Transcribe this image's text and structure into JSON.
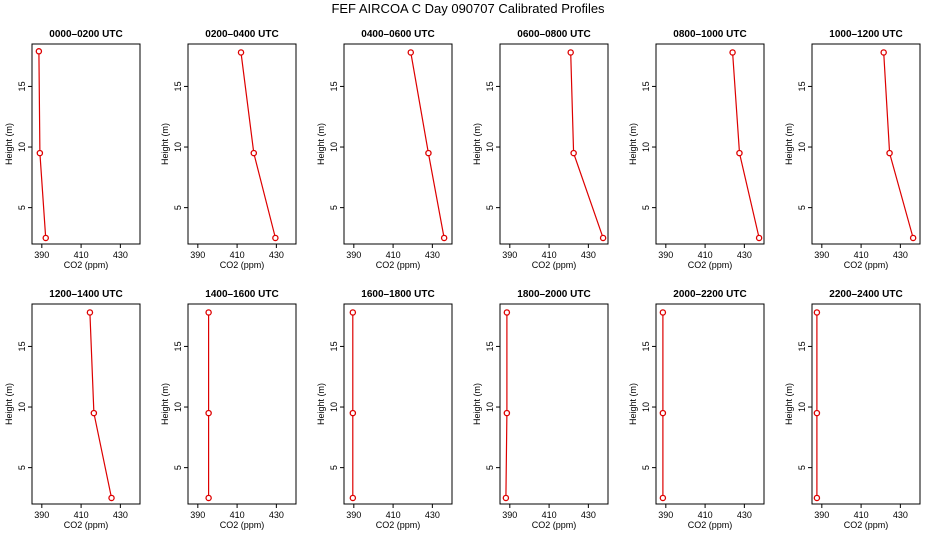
{
  "title": "FEF AIRCOA C  Day 090707  Calibrated Profiles",
  "colors": {
    "series": "#dd0000",
    "axis": "#000000",
    "background": "#ffffff"
  },
  "chart_data": [
    {
      "type": "line",
      "title": "0000–0200 UTC",
      "xlabel": "CO2 (ppm)",
      "ylabel": "Height (m)",
      "xlim": [
        385,
        440
      ],
      "ylim": [
        2,
        18.5
      ],
      "xticks": [
        390,
        410,
        430
      ],
      "yticks": [
        5,
        10,
        15
      ],
      "points": [
        {
          "x": 388.5,
          "y": 17.9
        },
        {
          "x": 389.0,
          "y": 9.5
        },
        {
          "x": 392.0,
          "y": 2.5
        }
      ]
    },
    {
      "type": "line",
      "title": "0200–0400 UTC",
      "xlabel": "CO2 (ppm)",
      "ylabel": "Height (m)",
      "xlim": [
        385,
        440
      ],
      "ylim": [
        2,
        18.5
      ],
      "xticks": [
        390,
        410,
        430
      ],
      "yticks": [
        5,
        10,
        15
      ],
      "points": [
        {
          "x": 412.0,
          "y": 17.8
        },
        {
          "x": 418.5,
          "y": 9.5
        },
        {
          "x": 429.5,
          "y": 2.5
        }
      ]
    },
    {
      "type": "line",
      "title": "0400–0600 UTC",
      "xlabel": "CO2 (ppm)",
      "ylabel": "Height (m)",
      "xlim": [
        385,
        440
      ],
      "ylim": [
        2,
        18.5
      ],
      "xticks": [
        390,
        410,
        430
      ],
      "yticks": [
        5,
        10,
        15
      ],
      "points": [
        {
          "x": 419.0,
          "y": 17.8
        },
        {
          "x": 428.0,
          "y": 9.5
        },
        {
          "x": 436.0,
          "y": 2.5
        }
      ]
    },
    {
      "type": "line",
      "title": "0600–0800 UTC",
      "xlabel": "CO2 (ppm)",
      "ylabel": "Height (m)",
      "xlim": [
        385,
        440
      ],
      "ylim": [
        2,
        18.5
      ],
      "xticks": [
        390,
        410,
        430
      ],
      "yticks": [
        5,
        10,
        15
      ],
      "points": [
        {
          "x": 421.0,
          "y": 17.8
        },
        {
          "x": 422.5,
          "y": 9.5
        },
        {
          "x": 437.5,
          "y": 2.5
        }
      ]
    },
    {
      "type": "line",
      "title": "0800–1000 UTC",
      "xlabel": "CO2 (ppm)",
      "ylabel": "Height (m)",
      "xlim": [
        385,
        440
      ],
      "ylim": [
        2,
        18.5
      ],
      "xticks": [
        390,
        410,
        430
      ],
      "yticks": [
        5,
        10,
        15
      ],
      "points": [
        {
          "x": 424.0,
          "y": 17.8
        },
        {
          "x": 427.5,
          "y": 9.5
        },
        {
          "x": 437.5,
          "y": 2.5
        }
      ]
    },
    {
      "type": "line",
      "title": "1000–1200 UTC",
      "xlabel": "CO2 (ppm)",
      "ylabel": "Height (m)",
      "xlim": [
        385,
        440
      ],
      "ylim": [
        2,
        18.5
      ],
      "xticks": [
        390,
        410,
        430
      ],
      "yticks": [
        5,
        10,
        15
      ],
      "points": [
        {
          "x": 421.5,
          "y": 17.8
        },
        {
          "x": 424.5,
          "y": 9.5
        },
        {
          "x": 436.5,
          "y": 2.5
        }
      ]
    },
    {
      "type": "line",
      "title": "1200–1400 UTC",
      "xlabel": "CO2 (ppm)",
      "ylabel": "Height (m)",
      "xlim": [
        385,
        440
      ],
      "ylim": [
        2,
        18.5
      ],
      "xticks": [
        390,
        410,
        430
      ],
      "yticks": [
        5,
        10,
        15
      ],
      "points": [
        {
          "x": 414.5,
          "y": 17.8
        },
        {
          "x": 416.5,
          "y": 9.5
        },
        {
          "x": 425.5,
          "y": 2.5
        }
      ]
    },
    {
      "type": "line",
      "title": "1400–1600 UTC",
      "xlabel": "CO2 (ppm)",
      "ylabel": "Height (m)",
      "xlim": [
        385,
        440
      ],
      "ylim": [
        2,
        18.5
      ],
      "xticks": [
        390,
        410,
        430
      ],
      "yticks": [
        5,
        10,
        15
      ],
      "points": [
        {
          "x": 395.5,
          "y": 17.8
        },
        {
          "x": 395.5,
          "y": 9.5
        },
        {
          "x": 395.5,
          "y": 2.5
        }
      ]
    },
    {
      "type": "line",
      "title": "1600–1800 UTC",
      "xlabel": "CO2 (ppm)",
      "ylabel": "Height (m)",
      "xlim": [
        385,
        440
      ],
      "ylim": [
        2,
        18.5
      ],
      "xticks": [
        390,
        410,
        430
      ],
      "yticks": [
        5,
        10,
        15
      ],
      "points": [
        {
          "x": 389.5,
          "y": 17.8
        },
        {
          "x": 389.5,
          "y": 9.5
        },
        {
          "x": 389.5,
          "y": 2.5
        }
      ]
    },
    {
      "type": "line",
      "title": "1800–2000 UTC",
      "xlabel": "CO2 (ppm)",
      "ylabel": "Height (m)",
      "xlim": [
        385,
        440
      ],
      "ylim": [
        2,
        18.5
      ],
      "xticks": [
        390,
        410,
        430
      ],
      "yticks": [
        5,
        10,
        15
      ],
      "points": [
        {
          "x": 388.5,
          "y": 17.8
        },
        {
          "x": 388.5,
          "y": 9.5
        },
        {
          "x": 388.0,
          "y": 2.5
        }
      ]
    },
    {
      "type": "line",
      "title": "2000–2200 UTC",
      "xlabel": "CO2 (ppm)",
      "ylabel": "Height (m)",
      "xlim": [
        385,
        440
      ],
      "ylim": [
        2,
        18.5
      ],
      "xticks": [
        390,
        410,
        430
      ],
      "yticks": [
        5,
        10,
        15
      ],
      "points": [
        {
          "x": 388.5,
          "y": 17.8
        },
        {
          "x": 388.5,
          "y": 9.5
        },
        {
          "x": 388.5,
          "y": 2.5
        }
      ]
    },
    {
      "type": "line",
      "title": "2200–2400 UTC",
      "xlabel": "CO2 (ppm)",
      "ylabel": "Height (m)",
      "xlim": [
        385,
        440
      ],
      "ylim": [
        2,
        18.5
      ],
      "xticks": [
        390,
        410,
        430
      ],
      "yticks": [
        5,
        10,
        15
      ],
      "points": [
        {
          "x": 387.5,
          "y": 17.8
        },
        {
          "x": 387.5,
          "y": 9.5
        },
        {
          "x": 387.5,
          "y": 2.5
        }
      ]
    }
  ]
}
